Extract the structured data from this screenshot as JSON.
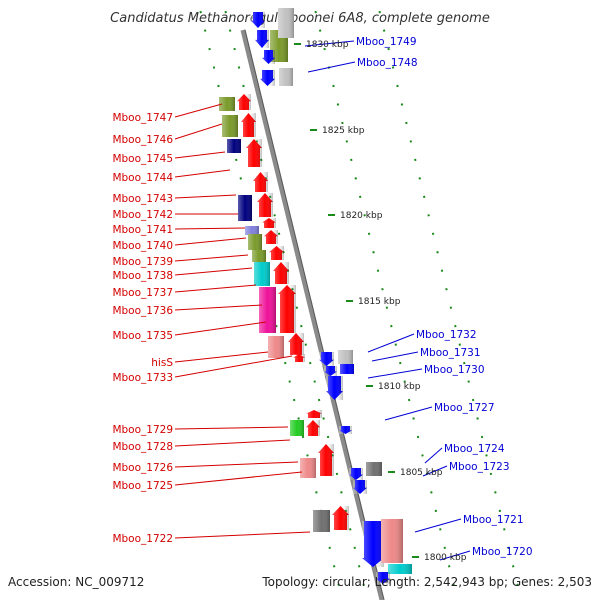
{
  "title": "Candidatus Methanoregula boonei 6A8, complete genome",
  "footer": {
    "accession": "Accession: NC_009712",
    "summary": "Topology: circular; Length: 2,542,943 bp; Genes: 2,503"
  },
  "scale_labels": [
    "1830 kbp",
    "1825 kbp",
    "1820 kbp",
    "1815 kbp",
    "1810 kbp",
    "1805 kbp",
    "1800 kbp"
  ],
  "left_labels": [
    "Mboo_1747",
    "Mboo_1746",
    "Mboo_1745",
    "Mboo_1744",
    "Mboo_1743",
    "Mboo_1742",
    "Mboo_1741",
    "Mboo_1740",
    "Mboo_1739",
    "Mboo_1738",
    "Mboo_1737",
    "Mboo_1736",
    "Mboo_1735",
    "hisS",
    "Mboo_1733",
    "Mboo_1729",
    "Mboo_1728",
    "Mboo_1726",
    "Mboo_1725",
    "Mboo_1722"
  ],
  "right_labels": [
    "Mboo_1749",
    "Mboo_1748",
    "Mboo_1732",
    "Mboo_1731",
    "Mboo_1730",
    "Mboo_1727",
    "Mboo_1724",
    "Mboo_1723",
    "Mboo_1721",
    "Mboo_1720"
  ],
  "colors": {
    "label_left": "#d40000",
    "label_right": "#0000d4",
    "backbone": "#8a8a8a",
    "tick": "#1a8a1a",
    "gene_red": "#ff0000",
    "gene_blue": "#0000ff",
    "gene_olive": "#7a9a2a",
    "gene_navy": "#000080",
    "gene_cyan": "#00cccc",
    "gene_magenta": "#ee1199",
    "gene_salmon": "#ee8888",
    "gene_green": "#22cc22",
    "gene_gray": "#707070",
    "gene_lightgray": "#c0c0c0",
    "gene_violet": "#8080dd"
  }
}
